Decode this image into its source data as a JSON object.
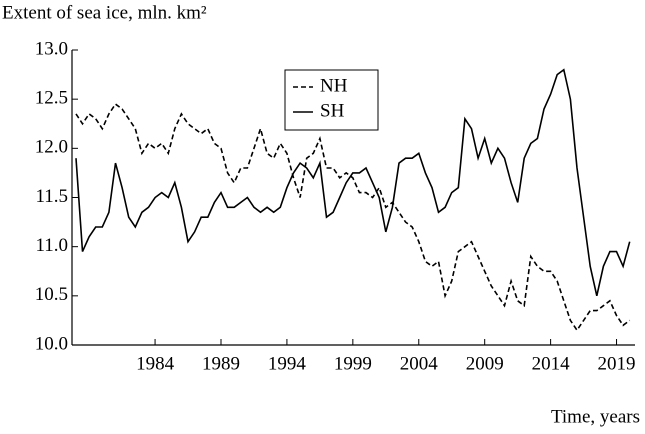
{
  "chart_data": {
    "type": "line",
    "title": "Extent of sea ice, mln. km²",
    "x_label": "Time, years",
    "x": [
      1978,
      1978.5,
      1979,
      1979.5,
      1980,
      1980.5,
      1981,
      1981.5,
      1982,
      1982.5,
      1983,
      1983.5,
      1984,
      1984.5,
      1985,
      1985.5,
      1986,
      1986.5,
      1987,
      1987.5,
      1988,
      1988.5,
      1989,
      1989.5,
      1990,
      1990.5,
      1991,
      1991.5,
      1992,
      1992.5,
      1993,
      1993.5,
      1994,
      1994.5,
      1995,
      1995.5,
      1996,
      1996.5,
      1997,
      1997.5,
      1998,
      1998.5,
      1999,
      1999.5,
      2000,
      2000.5,
      2001,
      2001.5,
      2002,
      2002.5,
      2003,
      2003.5,
      2004,
      2004.5,
      2005,
      2005.5,
      2006,
      2006.5,
      2007,
      2007.5,
      2008,
      2008.5,
      2009,
      2009.5,
      2010,
      2010.5,
      2011,
      2011.5,
      2012,
      2012.5,
      2013,
      2013.5,
      2014,
      2014.5,
      2015,
      2015.5,
      2016,
      2016.5,
      2017,
      2017.5,
      2018,
      2018.5,
      2019,
      2019.5,
      2020
    ],
    "series": [
      {
        "name": "NH",
        "color": "#000000",
        "dash": "5,3",
        "values": [
          12.35,
          12.25,
          12.35,
          12.3,
          12.2,
          12.35,
          12.45,
          12.4,
          12.3,
          12.2,
          11.95,
          12.05,
          12.0,
          12.05,
          11.95,
          12.2,
          12.35,
          12.25,
          12.2,
          12.15,
          12.2,
          12.05,
          12.0,
          11.75,
          11.65,
          11.8,
          11.8,
          12.0,
          12.2,
          11.95,
          11.9,
          12.05,
          11.95,
          11.7,
          11.5,
          11.9,
          11.95,
          12.1,
          11.8,
          11.8,
          11.7,
          11.75,
          11.7,
          11.55,
          11.55,
          11.5,
          11.6,
          11.4,
          11.45,
          11.35,
          11.25,
          11.2,
          11.05,
          10.85,
          10.8,
          10.85,
          10.5,
          10.65,
          10.95,
          11.0,
          11.05,
          10.9,
          10.75,
          10.6,
          10.5,
          10.4,
          10.65,
          10.45,
          10.4,
          10.9,
          10.8,
          10.75,
          10.75,
          10.65,
          10.45,
          10.25,
          10.15,
          10.25,
          10.35,
          10.35,
          10.4,
          10.45,
          10.3,
          10.2,
          10.25
        ]
      },
      {
        "name": "SH",
        "color": "#000000",
        "values": [
          11.9,
          10.95,
          11.1,
          11.2,
          11.2,
          11.35,
          11.85,
          11.6,
          11.3,
          11.2,
          11.35,
          11.4,
          11.5,
          11.55,
          11.5,
          11.65,
          11.4,
          11.05,
          11.15,
          11.3,
          11.3,
          11.45,
          11.55,
          11.4,
          11.4,
          11.45,
          11.5,
          11.4,
          11.35,
          11.4,
          11.35,
          11.4,
          11.6,
          11.75,
          11.85,
          11.8,
          11.7,
          11.85,
          11.3,
          11.35,
          11.5,
          11.65,
          11.75,
          11.75,
          11.8,
          11.65,
          11.5,
          11.15,
          11.4,
          11.85,
          11.9,
          11.9,
          11.95,
          11.75,
          11.6,
          11.35,
          11.4,
          11.55,
          11.6,
          12.3,
          12.2,
          11.9,
          12.1,
          11.85,
          12.0,
          11.9,
          11.65,
          11.45,
          11.9,
          12.05,
          12.1,
          12.4,
          12.55,
          12.75,
          12.8,
          12.5,
          11.8,
          11.3,
          10.8,
          10.5,
          10.8,
          10.95,
          10.95,
          10.8,
          11.05
        ]
      }
    ],
    "xlim": [
      1977.7,
      2020.4
    ],
    "xticks": [
      1984,
      1989,
      1994,
      1999,
      2004,
      2009,
      2014,
      2019
    ],
    "ylim": [
      10,
      13
    ],
    "yticks": [
      {
        "value": 10,
        "label": "10.0"
      },
      10.5,
      {
        "value": 11,
        "label": "11.0"
      },
      11.5,
      {
        "value": 12,
        "label": "12.0"
      },
      12.5,
      {
        "value": 13,
        "label": "13.0"
      }
    ]
  }
}
